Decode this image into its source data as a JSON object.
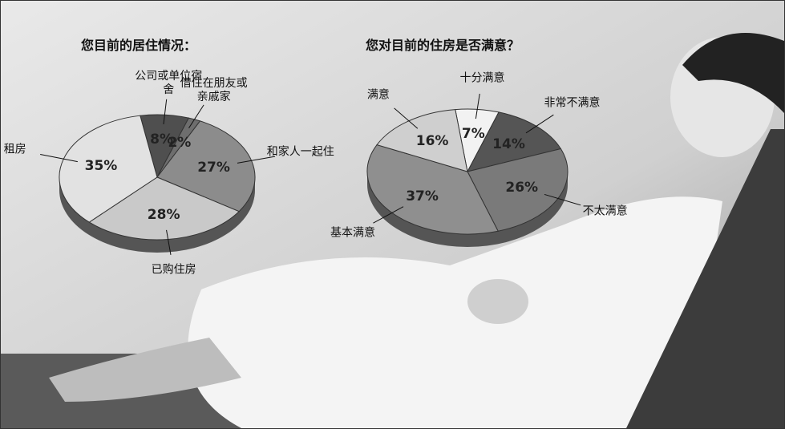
{
  "chart_data": [
    {
      "type": "pie",
      "title": "您目前的居住情况：",
      "categories": [
        "公司或单位宿舍",
        "借住在朋友或亲戚家",
        "和家人一起住",
        "已购住房",
        "租房"
      ],
      "values": [
        8,
        2,
        27,
        28,
        35
      ],
      "value_labels": [
        "8%",
        "2%",
        "27%",
        "28%",
        "35%"
      ],
      "colors": [
        "#4f4f4f",
        "#6e6e6e",
        "#8c8c8c",
        "#c9c9c9",
        "#e2e2e2"
      ]
    },
    {
      "type": "pie",
      "title": "您对目前的住房是否满意？",
      "categories": [
        "十分满意",
        "非常不满意",
        "不太满意",
        "基本满意",
        "满意"
      ],
      "values": [
        7,
        14,
        26,
        37,
        16
      ],
      "value_labels": [
        "7%",
        "14%",
        "26%",
        "37%",
        "16%"
      ],
      "colors": [
        "#f2f2f2",
        "#555555",
        "#7a7a7a",
        "#8f8f8f",
        "#cfcfcf"
      ]
    }
  ]
}
